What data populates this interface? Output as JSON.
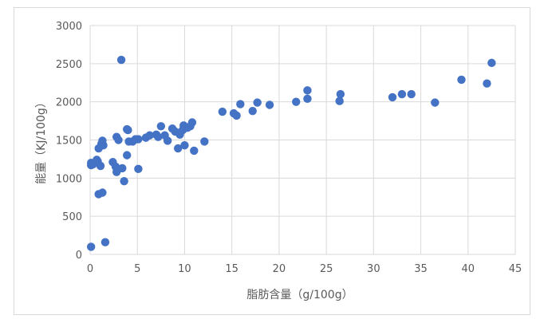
{
  "chart_data": {
    "type": "scatter",
    "title": "",
    "xlabel": "脂肪含量（g/100g）",
    "ylabel": "能量（KJ/100g）",
    "xlim": [
      0,
      45
    ],
    "ylim": [
      0,
      3000
    ],
    "x_ticks": [
      0,
      5,
      10,
      15,
      20,
      25,
      30,
      35,
      40,
      45
    ],
    "y_ticks": [
      0,
      500,
      1000,
      1500,
      2000,
      2500,
      3000
    ],
    "grid": "vertical-and-horizontal major gridlines",
    "legend": "none",
    "marker_color": "#4472C4",
    "points": [
      {
        "x": 0.1,
        "y": 100
      },
      {
        "x": 0.1,
        "y": 1170
      },
      {
        "x": 0.1,
        "y": 1200
      },
      {
        "x": 0.3,
        "y": 1180
      },
      {
        "x": 0.7,
        "y": 1240
      },
      {
        "x": 0.8,
        "y": 1220
      },
      {
        "x": 0.9,
        "y": 1390
      },
      {
        "x": 0.9,
        "y": 790
      },
      {
        "x": 1.1,
        "y": 1160
      },
      {
        "x": 1.2,
        "y": 1450
      },
      {
        "x": 1.3,
        "y": 1490
      },
      {
        "x": 1.3,
        "y": 810
      },
      {
        "x": 1.4,
        "y": 1430
      },
      {
        "x": 1.6,
        "y": 160
      },
      {
        "x": 2.4,
        "y": 1210
      },
      {
        "x": 2.7,
        "y": 1150
      },
      {
        "x": 2.8,
        "y": 1540
      },
      {
        "x": 2.8,
        "y": 1080
      },
      {
        "x": 3.0,
        "y": 1500
      },
      {
        "x": 3.3,
        "y": 2550
      },
      {
        "x": 3.4,
        "y": 1130
      },
      {
        "x": 3.6,
        "y": 960
      },
      {
        "x": 3.9,
        "y": 1300
      },
      {
        "x": 3.9,
        "y": 1640
      },
      {
        "x": 4.0,
        "y": 1630
      },
      {
        "x": 4.1,
        "y": 1480
      },
      {
        "x": 4.5,
        "y": 1480
      },
      {
        "x": 4.8,
        "y": 1510
      },
      {
        "x": 5.1,
        "y": 1510
      },
      {
        "x": 5.1,
        "y": 1120
      },
      {
        "x": 5.9,
        "y": 1530
      },
      {
        "x": 6.3,
        "y": 1560
      },
      {
        "x": 7.0,
        "y": 1570
      },
      {
        "x": 7.2,
        "y": 1540
      },
      {
        "x": 7.5,
        "y": 1680
      },
      {
        "x": 7.9,
        "y": 1560
      },
      {
        "x": 8.2,
        "y": 1490
      },
      {
        "x": 8.7,
        "y": 1650
      },
      {
        "x": 9.0,
        "y": 1610
      },
      {
        "x": 9.3,
        "y": 1390
      },
      {
        "x": 9.5,
        "y": 1570
      },
      {
        "x": 9.8,
        "y": 1630
      },
      {
        "x": 9.9,
        "y": 1690
      },
      {
        "x": 10.0,
        "y": 1430
      },
      {
        "x": 10.3,
        "y": 1660
      },
      {
        "x": 10.6,
        "y": 1680
      },
      {
        "x": 10.8,
        "y": 1730
      },
      {
        "x": 11.0,
        "y": 1360
      },
      {
        "x": 12.1,
        "y": 1480
      },
      {
        "x": 14.0,
        "y": 1870
      },
      {
        "x": 15.2,
        "y": 1850
      },
      {
        "x": 15.5,
        "y": 1820
      },
      {
        "x": 15.9,
        "y": 1970
      },
      {
        "x": 17.2,
        "y": 1880
      },
      {
        "x": 17.7,
        "y": 1990
      },
      {
        "x": 19.0,
        "y": 1960
      },
      {
        "x": 21.8,
        "y": 2000
      },
      {
        "x": 23.0,
        "y": 2040
      },
      {
        "x": 23.0,
        "y": 2150
      },
      {
        "x": 26.4,
        "y": 2010
      },
      {
        "x": 26.5,
        "y": 2100
      },
      {
        "x": 32.0,
        "y": 2060
      },
      {
        "x": 33.0,
        "y": 2100
      },
      {
        "x": 34.0,
        "y": 2100
      },
      {
        "x": 36.5,
        "y": 1990
      },
      {
        "x": 39.3,
        "y": 2290
      },
      {
        "x": 42.0,
        "y": 2240
      },
      {
        "x": 42.5,
        "y": 2510
      }
    ]
  }
}
